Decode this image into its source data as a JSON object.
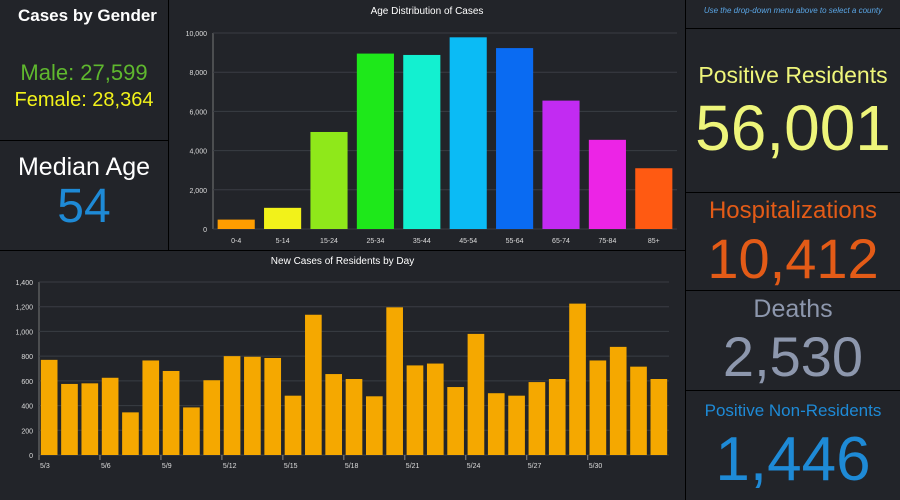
{
  "gender": {
    "title": "Cases by Gender",
    "male": "Male: 27,599",
    "female": "Female: 28,364",
    "male_color": "#5fb82e",
    "female_color": "#f2f21a"
  },
  "median": {
    "label": "Median Age",
    "value": "54"
  },
  "note": "Use the drop-down menu above to select a county",
  "positive": {
    "label": "Positive Residents",
    "value": "56,001",
    "color": "#eef57a"
  },
  "hospital": {
    "label": "Hospitalizations",
    "value": "10,412",
    "color": "#e35b17"
  },
  "deaths": {
    "label": "Deaths",
    "value": "2,530",
    "color": "#8d97ad"
  },
  "nonresidents": {
    "label": "Positive Non-Residents",
    "value": "1,446",
    "color": "#1e8ad6"
  },
  "chart_data": [
    {
      "type": "bar",
      "title": "Age Distribution of Cases",
      "categories": [
        "0-4",
        "5-14",
        "15-24",
        "25-34",
        "35-44",
        "45-54",
        "55-64",
        "65-74",
        "75-84",
        "85+"
      ],
      "values": [
        480,
        1080,
        4950,
        8950,
        8880,
        9780,
        9230,
        6550,
        4550,
        3100
      ],
      "colors": [
        "#ff9d00",
        "#f2f21a",
        "#8fe81a",
        "#1ee81a",
        "#13f0d0",
        "#0bbbf5",
        "#0a6bf2",
        "#c22bf2",
        "#ec24e6",
        "#ff5a12"
      ],
      "ylim": [
        0,
        10000
      ],
      "yticks": [
        "0",
        "2,000",
        "4,000",
        "6,000",
        "8,000",
        "10,000"
      ],
      "ytick_values": [
        0,
        2000,
        4000,
        6000,
        8000,
        10000
      ]
    },
    {
      "type": "bar",
      "title": "New Cases of Residents by Day",
      "values": [
        770,
        575,
        580,
        625,
        345,
        765,
        680,
        385,
        605,
        800,
        795,
        785,
        480,
        1135,
        655,
        615,
        475,
        1195,
        725,
        740,
        550,
        980,
        500,
        480,
        590,
        615,
        1225,
        765,
        875,
        715,
        615
      ],
      "color": "#f5a800",
      "xtick_labels": [
        "5/3",
        "5/6",
        "5/9",
        "5/12",
        "5/15",
        "5/18",
        "5/21",
        "5/24",
        "5/27",
        "5/30"
      ],
      "xtick_index": [
        0,
        3,
        6,
        9,
        12,
        15,
        18,
        21,
        24,
        27
      ],
      "ylim": [
        0,
        1400
      ],
      "yticks": [
        "0",
        "200",
        "400",
        "600",
        "800",
        "1,000",
        "1,200",
        "1,400"
      ],
      "ytick_values": [
        0,
        200,
        400,
        600,
        800,
        1000,
        1200,
        1400
      ]
    }
  ]
}
